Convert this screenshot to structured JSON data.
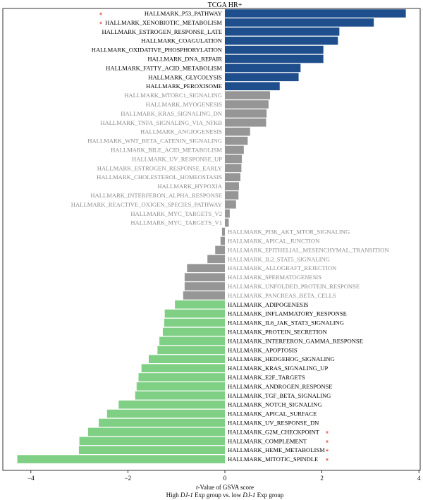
{
  "chart_data": {
    "type": "bar",
    "orientation": "horizontal",
    "title": "TCGA HR+",
    "xlabel_line1_parts": [
      "t",
      "-Value of GSVA score"
    ],
    "xlabel_line2_parts": [
      "High ",
      "DJ-1",
      " Exp group vs. low ",
      "DJ-1",
      " Exp group"
    ],
    "xlim": [
      -4.4,
      4.1
    ],
    "xticks": [
      -4,
      -2,
      0,
      2,
      4
    ],
    "xtick_labels": [
      "−4",
      "−2",
      "0",
      "2",
      "4"
    ],
    "colors": {
      "up_significant": "#1f4e8c",
      "not_significant": "#969696",
      "down_significant": "#7fcf84",
      "label_dark": "#000000",
      "label_gray": "#8c8c8c",
      "star": "#e8322b"
    },
    "bars": [
      {
        "label": "HALLMARK_P53_PATHWAY",
        "value": 3.73,
        "group": "up",
        "star": true
      },
      {
        "label": "HALLMARK_XENOBIOTIC_METABOLISM",
        "value": 3.07,
        "group": "up",
        "star": true
      },
      {
        "label": "HALLMARK_ESTROGEN_RESPONSE_LATE",
        "value": 2.36,
        "group": "up",
        "star": false
      },
      {
        "label": "HALLMARK_COAGULATION",
        "value": 2.33,
        "group": "up",
        "star": false
      },
      {
        "label": "HALLMARK_OXIDATIVE_PHOSPHORYLATION",
        "value": 2.03,
        "group": "up",
        "star": false
      },
      {
        "label": "HALLMARK_DNA_REPAIR",
        "value": 2.03,
        "group": "up",
        "star": false
      },
      {
        "label": "HALLMARK_FATTY_ACID_METABOLISM",
        "value": 1.56,
        "group": "up",
        "star": false
      },
      {
        "label": "HALLMARK_GLYCOLYSIS",
        "value": 1.52,
        "group": "up",
        "star": false
      },
      {
        "label": "HALLMARK_PEROXISOME",
        "value": 1.13,
        "group": "up",
        "star": false
      },
      {
        "label": "HALLMARK_MTORC1_SIGNALING",
        "value": 0.93,
        "group": "ns",
        "star": false
      },
      {
        "label": "HALLMARK_MYOGENESIS",
        "value": 0.9,
        "group": "ns",
        "star": false
      },
      {
        "label": "HALLMARK_KRAS_SIGNALING_DN",
        "value": 0.86,
        "group": "ns",
        "star": false
      },
      {
        "label": "HALLMARK_TNFA_SIGNALING_VIA_NFKB",
        "value": 0.85,
        "group": "ns",
        "star": false
      },
      {
        "label": "HALLMARK_ANGIOGENESIS",
        "value": 0.52,
        "group": "ns",
        "star": false
      },
      {
        "label": "HALLMARK_WNT_BETA_CATENIN_SIGNALING",
        "value": 0.47,
        "group": "ns",
        "star": false
      },
      {
        "label": "HALLMARK_BILE_ACID_METABOLISM",
        "value": 0.39,
        "group": "ns",
        "star": false
      },
      {
        "label": "HALLMARK_UV_RESPONSE_UP",
        "value": 0.35,
        "group": "ns",
        "star": false
      },
      {
        "label": "HALLMARK_ESTROGEN_RESPONSE_EARLY",
        "value": 0.34,
        "group": "ns",
        "star": false
      },
      {
        "label": "HALLMARK_CHOLESTEROL_HOMEOSTASIS",
        "value": 0.32,
        "group": "ns",
        "star": false
      },
      {
        "label": "HALLMARK_HYPOXIA",
        "value": 0.29,
        "group": "ns",
        "star": false
      },
      {
        "label": "HALLMARK_INTERFERON_ALPHA_RESPONSE",
        "value": 0.28,
        "group": "ns",
        "star": false
      },
      {
        "label": "HALLMARK_REACTIVE_OXIGEN_SPECIES_PATHWAY",
        "value": 0.23,
        "group": "ns",
        "star": false
      },
      {
        "label": "HALLMARK_MYC_TARGETS_V2",
        "value": 0.1,
        "group": "ns",
        "star": false
      },
      {
        "label": "HALLMARK_MYC_TARGETS_V1",
        "value": 0.08,
        "group": "ns",
        "star": false
      },
      {
        "label": "HALLMARK_PI3K_AKT_MTOR_SIGNALING",
        "value": -0.06,
        "group": "ns",
        "star": false
      },
      {
        "label": "HALLMARK_APICAL_JUNCTION",
        "value": -0.09,
        "group": "ns",
        "star": false
      },
      {
        "label": "HALLMARK_EPITHELIAL_MESENCHYMAL_TRANSITION",
        "value": -0.2,
        "group": "ns",
        "star": false
      },
      {
        "label": "HALLMARK_IL2_STAT5_SIGNALING",
        "value": -0.36,
        "group": "ns",
        "star": false
      },
      {
        "label": "HALLMARK_ALLOGRAFT_REJECTION",
        "value": -0.78,
        "group": "ns",
        "star": false
      },
      {
        "label": "HALLMARK_SPERMATOGENESIS",
        "value": -0.83,
        "group": "ns",
        "star": false
      },
      {
        "label": "HALLMARK_UNFOLDED_PROTEIN_RESPONSE",
        "value": -0.83,
        "group": "ns",
        "star": false
      },
      {
        "label": "HALLMARK_PANCREAS_BETA_CELLS",
        "value": -0.86,
        "group": "ns",
        "star": false
      },
      {
        "label": "HALLMARK_ADIPOGENESIS",
        "value": -1.03,
        "group": "down",
        "star": false
      },
      {
        "label": "HALLMARK_INFLAMMATORY_RESPONSE",
        "value": -1.24,
        "group": "down",
        "star": false
      },
      {
        "label": "HALLMARK_IL6_JAK_STAT3_SIGNALING",
        "value": -1.25,
        "group": "down",
        "star": false
      },
      {
        "label": "HALLMARK_PROTEIN_SECRETION",
        "value": -1.28,
        "group": "down",
        "star": false
      },
      {
        "label": "HALLMARK_INTERFERON_GAMMA_RESPONSE",
        "value": -1.35,
        "group": "down",
        "star": false
      },
      {
        "label": "HALLMARK_APOPTOSIS",
        "value": -1.39,
        "group": "down",
        "star": false
      },
      {
        "label": "HALLMARK_HEDGEHOG_SIGNALING",
        "value": -1.57,
        "group": "down",
        "star": false
      },
      {
        "label": "HALLMARK_KRAS_SIGNALING_UP",
        "value": -1.72,
        "group": "down",
        "star": false
      },
      {
        "label": "HALLMARK_E2F_TARGETS",
        "value": -1.78,
        "group": "down",
        "star": false
      },
      {
        "label": "HALLMARK_ANDROGEN_RESPONSE",
        "value": -1.82,
        "group": "down",
        "star": false
      },
      {
        "label": "HALLMARK_TGF_BETA_SIGNALING",
        "value": -1.85,
        "group": "down",
        "star": false
      },
      {
        "label": "HALLMARK_NOTCH_SIGNALING",
        "value": -2.19,
        "group": "down",
        "star": false
      },
      {
        "label": "HALLMARK_APICAL_SURFACE",
        "value": -2.43,
        "group": "down",
        "star": false
      },
      {
        "label": "HALLMARK_UV_RESPONSE_DN",
        "value": -2.6,
        "group": "down",
        "star": false
      },
      {
        "label": "HALLMARK_G2M_CHECKPOINT",
        "value": -2.82,
        "group": "down",
        "star": true
      },
      {
        "label": "HALLMARK_COMPLEMENT",
        "value": -3.0,
        "group": "down",
        "star": true
      },
      {
        "label": "HALLMARK_HEME_METABOLISM",
        "value": -3.01,
        "group": "down",
        "star": true
      },
      {
        "label": "HALLMARK_MITOTIC_SPINDLE",
        "value": -4.28,
        "group": "down",
        "star": true
      }
    ],
    "star_symbol": "*",
    "grid": false,
    "legend": "none"
  }
}
